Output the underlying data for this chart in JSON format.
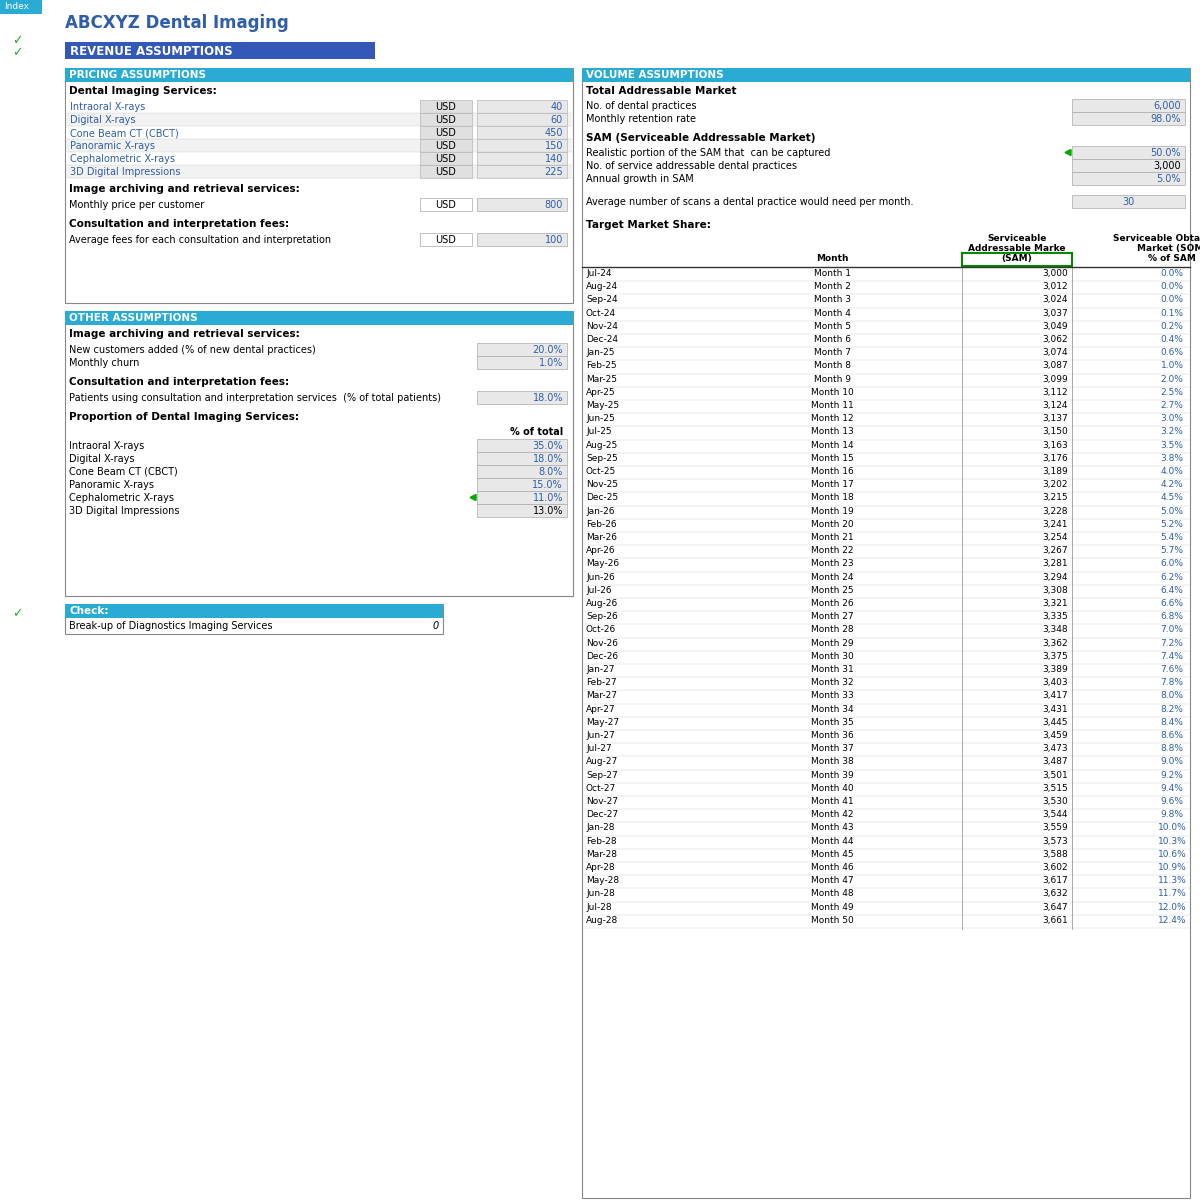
{
  "title": "ABCXYZ Dental Imaging",
  "tab_label": "Index",
  "section_header": "REVENUE ASSUMPTIONS",
  "section_header_color": "#3358B8",
  "subsection_header_color": "#29ABD4",
  "background": "#FFFFFF",
  "pricing_header": "PRICING ASSUMPTIONS",
  "pricing_subheader": "Dental Imaging Services:",
  "pricing_items": [
    [
      "Intraoral X-rays",
      "USD",
      "40"
    ],
    [
      "Digital X-rays",
      "USD",
      "60"
    ],
    [
      "Cone Beam CT (CBCT)",
      "USD",
      "450"
    ],
    [
      "Panoramic X-rays",
      "USD",
      "150"
    ],
    [
      "Cephalometric X-rays",
      "USD",
      "140"
    ],
    [
      "3D Digital Impressions",
      "USD",
      "225"
    ]
  ],
  "archiving_header": "Image archiving and retrieval services:",
  "archiving_item": [
    "Monthly price per customer",
    "USD",
    "800"
  ],
  "consult_header": "Consultation and interpretation fees:",
  "consult_item": [
    "Average fees for each consultation and interpretation",
    "USD",
    "100"
  ],
  "other_header": "OTHER ASSUMPTIONS",
  "other_archiving_header": "Image archiving and retrieval services:",
  "other_archiving_items": [
    [
      "New customers added (% of new dental practices)",
      "20.0%"
    ],
    [
      "Monthly churn",
      "1.0%"
    ]
  ],
  "other_consult_header": "Consultation and interpretation fees:",
  "other_consult_items": [
    [
      "Patients using consultation and interpretation services  (% of total patients)",
      "18.0%"
    ]
  ],
  "proportion_header": "Proportion of Dental Imaging Services:",
  "proportion_col_header": "% of total",
  "proportion_items": [
    [
      "Intraoral X-rays",
      "35.0%",
      true
    ],
    [
      "Digital X-rays",
      "18.0%",
      true
    ],
    [
      "Cone Beam CT (CBCT)",
      "8.0%",
      true
    ],
    [
      "Panoramic X-rays",
      "15.0%",
      true
    ],
    [
      "Cephalometric X-rays",
      "11.0%",
      true
    ],
    [
      "3D Digital Impressions",
      "13.0%",
      false
    ]
  ],
  "check_header": "Check:",
  "check_item": [
    "Break-up of Diagnostics Imaging Services",
    "0"
  ],
  "volume_header": "VOLUME ASSUMPTIONS",
  "tam_header": "Total Addressable Market",
  "tam_items": [
    [
      "No. of dental practices",
      "6,000",
      true
    ],
    [
      "Monthly retention rate",
      "98.0%",
      true
    ]
  ],
  "sam_header": "SAM (Serviceable Addressable Market)",
  "sam_items": [
    [
      "Realistic portion of the SAM that  can be captured",
      "50.0%",
      true,
      true
    ],
    [
      "No. of service addressable dental practices",
      "3,000",
      false,
      false
    ],
    [
      "Annual growth in SAM",
      "5.0%",
      true,
      false
    ]
  ],
  "avg_scans_label": "Average number of scans a dental practice would need per month.",
  "avg_scans_value": "30",
  "tms_rows": [
    [
      "Jul-24",
      "Month 1",
      "3,000",
      "0.0%"
    ],
    [
      "Aug-24",
      "Month 2",
      "3,012",
      "0.0%"
    ],
    [
      "Sep-24",
      "Month 3",
      "3,024",
      "0.0%"
    ],
    [
      "Oct-24",
      "Month 4",
      "3,037",
      "0.1%"
    ],
    [
      "Nov-24",
      "Month 5",
      "3,049",
      "0.2%"
    ],
    [
      "Dec-24",
      "Month 6",
      "3,062",
      "0.4%"
    ],
    [
      "Jan-25",
      "Month 7",
      "3,074",
      "0.6%"
    ],
    [
      "Feb-25",
      "Month 8",
      "3,087",
      "1.0%"
    ],
    [
      "Mar-25",
      "Month 9",
      "3,099",
      "2.0%"
    ],
    [
      "Apr-25",
      "Month 10",
      "3,112",
      "2.5%"
    ],
    [
      "May-25",
      "Month 11",
      "3,124",
      "2.7%"
    ],
    [
      "Jun-25",
      "Month 12",
      "3,137",
      "3.0%"
    ],
    [
      "Jul-25",
      "Month 13",
      "3,150",
      "3.2%"
    ],
    [
      "Aug-25",
      "Month 14",
      "3,163",
      "3.5%"
    ],
    [
      "Sep-25",
      "Month 15",
      "3,176",
      "3.8%"
    ],
    [
      "Oct-25",
      "Month 16",
      "3,189",
      "4.0%"
    ],
    [
      "Nov-25",
      "Month 17",
      "3,202",
      "4.2%"
    ],
    [
      "Dec-25",
      "Month 18",
      "3,215",
      "4.5%"
    ],
    [
      "Jan-26",
      "Month 19",
      "3,228",
      "5.0%"
    ],
    [
      "Feb-26",
      "Month 20",
      "3,241",
      "5.2%"
    ],
    [
      "Mar-26",
      "Month 21",
      "3,254",
      "5.4%"
    ],
    [
      "Apr-26",
      "Month 22",
      "3,267",
      "5.7%"
    ],
    [
      "May-26",
      "Month 23",
      "3,281",
      "6.0%"
    ],
    [
      "Jun-26",
      "Month 24",
      "3,294",
      "6.2%"
    ],
    [
      "Jul-26",
      "Month 25",
      "3,308",
      "6.4%"
    ],
    [
      "Aug-26",
      "Month 26",
      "3,321",
      "6.6%"
    ],
    [
      "Sep-26",
      "Month 27",
      "3,335",
      "6.8%"
    ],
    [
      "Oct-26",
      "Month 28",
      "3,348",
      "7.0%"
    ],
    [
      "Nov-26",
      "Month 29",
      "3,362",
      "7.2%"
    ],
    [
      "Dec-26",
      "Month 30",
      "3,375",
      "7.4%"
    ],
    [
      "Jan-27",
      "Month 31",
      "3,389",
      "7.6%"
    ],
    [
      "Feb-27",
      "Month 32",
      "3,403",
      "7.8%"
    ],
    [
      "Mar-27",
      "Month 33",
      "3,417",
      "8.0%"
    ],
    [
      "Apr-27",
      "Month 34",
      "3,431",
      "8.2%"
    ],
    [
      "May-27",
      "Month 35",
      "3,445",
      "8.4%"
    ],
    [
      "Jun-27",
      "Month 36",
      "3,459",
      "8.6%"
    ],
    [
      "Jul-27",
      "Month 37",
      "3,473",
      "8.8%"
    ],
    [
      "Aug-27",
      "Month 38",
      "3,487",
      "9.0%"
    ],
    [
      "Sep-27",
      "Month 39",
      "3,501",
      "9.2%"
    ],
    [
      "Oct-27",
      "Month 40",
      "3,515",
      "9.4%"
    ],
    [
      "Nov-27",
      "Month 41",
      "3,530",
      "9.6%"
    ],
    [
      "Dec-27",
      "Month 42",
      "3,544",
      "9.8%"
    ],
    [
      "Jan-28",
      "Month 43",
      "3,559",
      "10.0%"
    ],
    [
      "Feb-28",
      "Month 44",
      "3,573",
      "10.3%"
    ],
    [
      "Mar-28",
      "Month 45",
      "3,588",
      "10.6%"
    ],
    [
      "Apr-28",
      "Month 46",
      "3,602",
      "10.9%"
    ],
    [
      "May-28",
      "Month 47",
      "3,617",
      "11.3%"
    ],
    [
      "Jun-28",
      "Month 48",
      "3,632",
      "11.7%"
    ],
    [
      "Jul-28",
      "Month 49",
      "3,647",
      "12.0%"
    ],
    [
      "Aug-28",
      "Month 50",
      "3,661",
      "12.4%"
    ]
  ],
  "blue_text_color": "#2E5EAA",
  "input_cell_color": "#E8E8E8",
  "border_color": "#AAAAAA",
  "green_check": "#22AA22",
  "dark_border": "#888888",
  "cell_border": "#CCCCCC"
}
